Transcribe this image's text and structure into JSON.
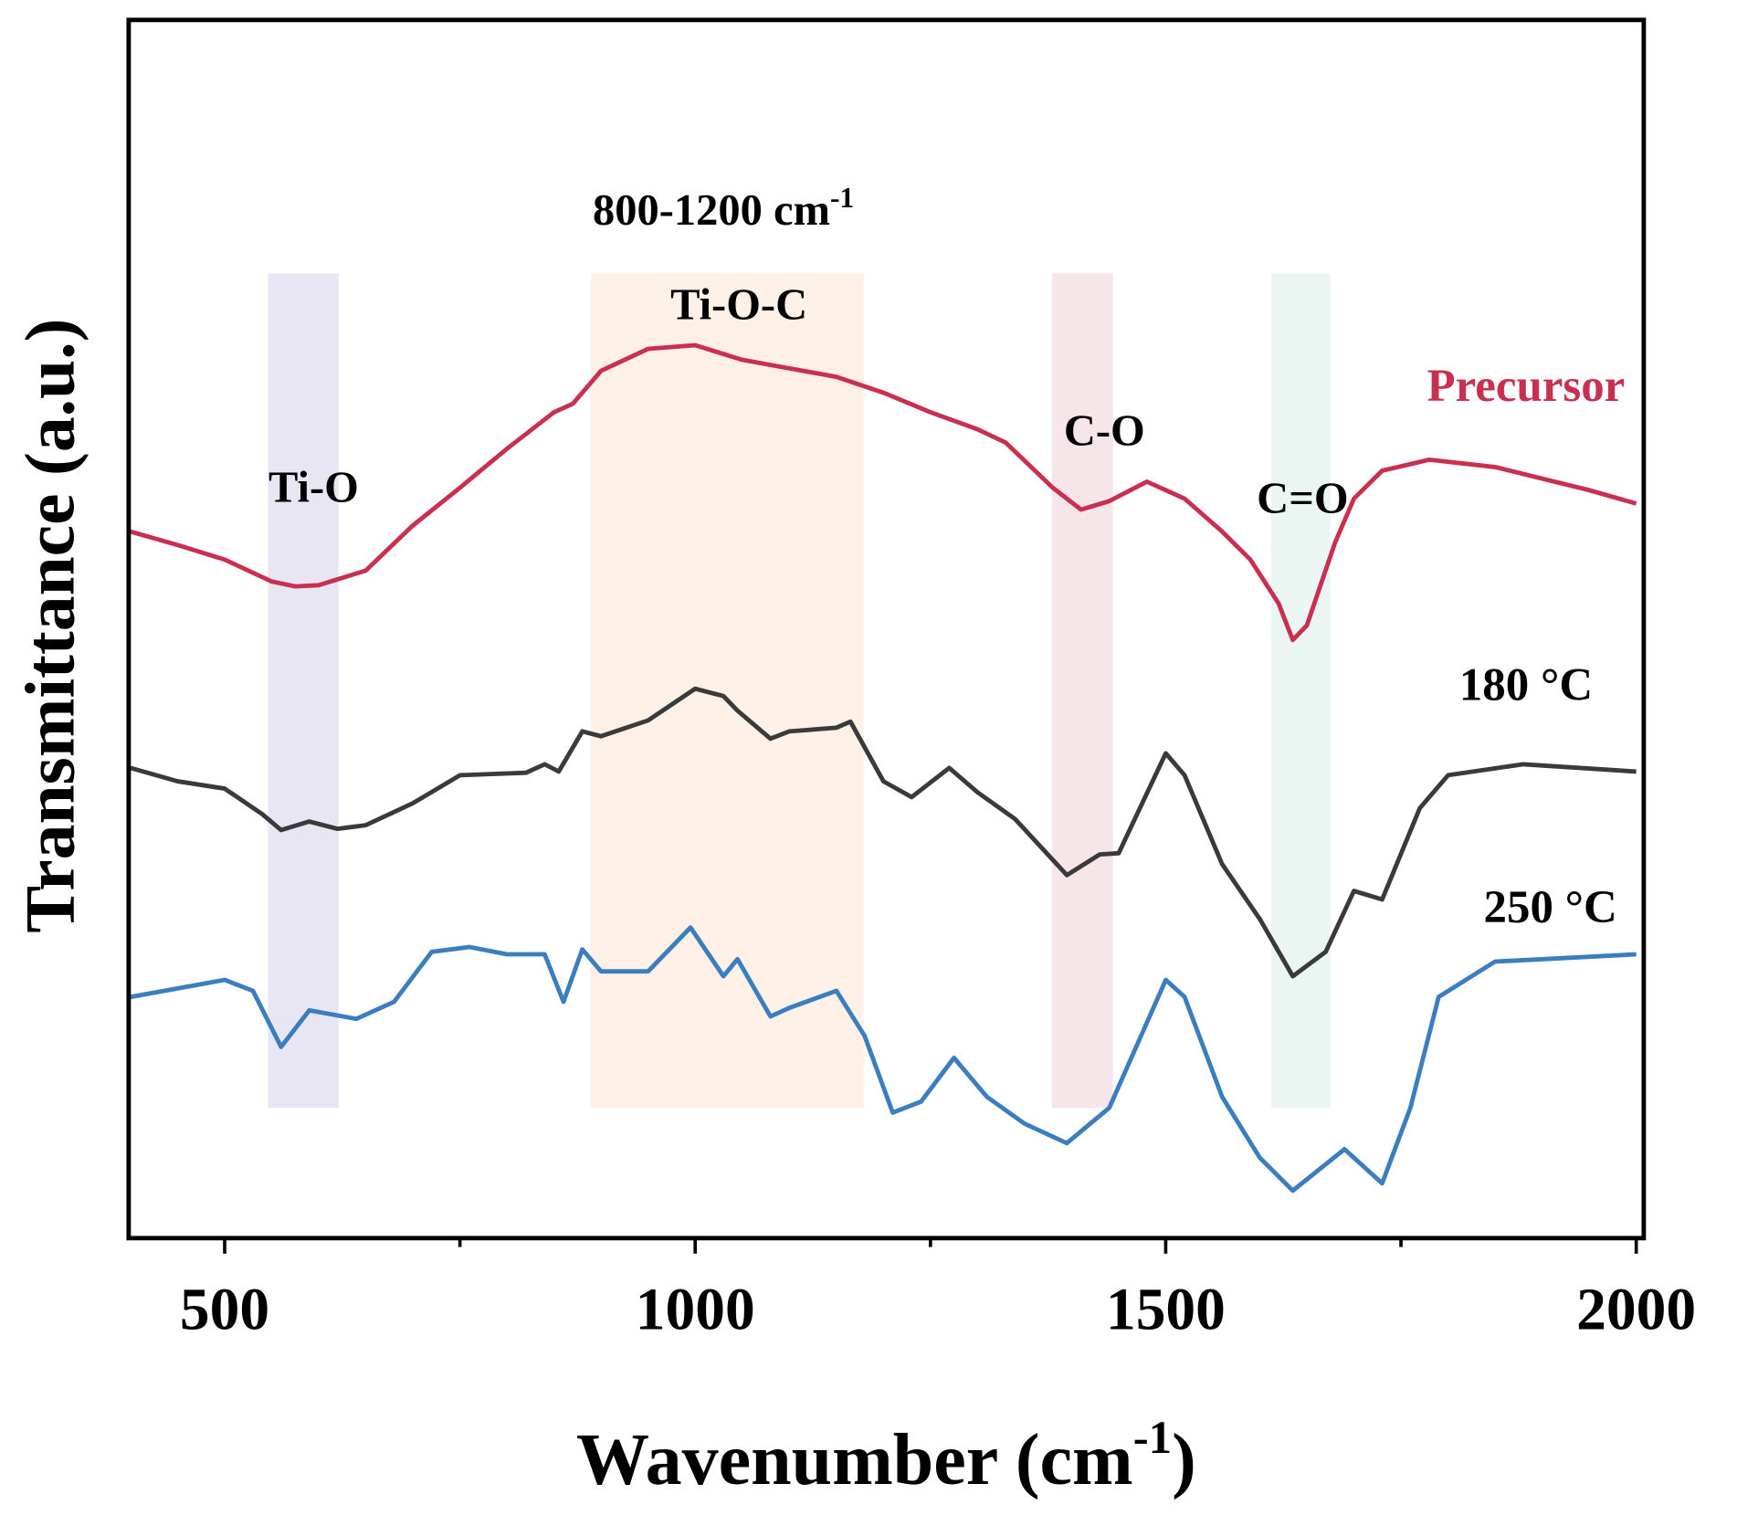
{
  "chart_data": {
    "type": "line",
    "title": "",
    "xlabel": "Wavenumber (cm",
    "xlabel_sup": "-1",
    "xlabel_end": ")",
    "ylabel": "Transmittance (a.u.)",
    "xlim": [
      398,
      2008
    ],
    "ylim": [
      0,
      100
    ],
    "xticks": [
      500,
      1000,
      1500,
      2000
    ],
    "xtick_labels": [
      "500",
      "1000",
      "1500",
      "2000"
    ],
    "minor_xticks": [
      750,
      1250,
      1750
    ],
    "grid": false,
    "bands": [
      {
        "label": "Ti-O",
        "x": [
          546,
          621
        ],
        "color": "#e9e6f3"
      },
      {
        "label": "Ti-O-C",
        "x": [
          889,
          1179
        ],
        "color": "#fdf0e6"
      },
      {
        "label": "C-O",
        "x": [
          1379,
          1444
        ],
        "color": "#f6e6ea"
      },
      {
        "label": "C=O",
        "x": [
          1612,
          1675
        ],
        "color": "#ebf5f2"
      }
    ],
    "band_y": [
      10.7,
      79.2
    ],
    "range_annotation": {
      "text": "800-1200 cm",
      "sup": "-1"
    },
    "series": [
      {
        "name": "Precursor",
        "color": "#c9304f",
        "x": [
          400,
          450,
          500,
          550,
          575,
          600,
          650,
          700,
          750,
          800,
          850,
          870,
          900,
          950,
          1000,
          1050,
          1100,
          1150,
          1200,
          1250,
          1300,
          1330,
          1380,
          1410,
          1440,
          1480,
          1520,
          1560,
          1590,
          1620,
          1635,
          1650,
          1680,
          1700,
          1730,
          1780,
          1850,
          1950,
          2000
        ],
        "y": [
          58.0,
          56.9,
          55.7,
          53.9,
          53.5,
          53.6,
          54.8,
          58.5,
          61.6,
          64.8,
          67.8,
          68.5,
          71.2,
          73.0,
          73.3,
          72.1,
          71.4,
          70.7,
          69.4,
          67.8,
          66.4,
          65.3,
          61.6,
          59.8,
          60.5,
          62.1,
          60.7,
          58.0,
          55.7,
          52.1,
          49.1,
          50.3,
          57.1,
          60.7,
          63.0,
          63.9,
          63.3,
          61.4,
          60.3
        ]
      },
      {
        "name": "180 °C",
        "color": "#3a3a3a",
        "x": [
          400,
          450,
          500,
          540,
          560,
          590,
          620,
          650,
          700,
          750,
          820,
          840,
          855,
          880,
          900,
          950,
          1000,
          1030,
          1045,
          1080,
          1100,
          1150,
          1165,
          1200,
          1230,
          1270,
          1300,
          1340,
          1395,
          1430,
          1450,
          1500,
          1520,
          1560,
          1600,
          1635,
          1670,
          1700,
          1730,
          1770,
          1800,
          1880,
          2000
        ],
        "y": [
          38.6,
          37.5,
          36.9,
          34.8,
          33.5,
          34.2,
          33.6,
          33.9,
          35.7,
          38.0,
          38.2,
          38.9,
          38.3,
          41.6,
          41.2,
          42.5,
          45.1,
          44.5,
          43.3,
          41.0,
          41.6,
          41.9,
          42.4,
          37.5,
          36.2,
          38.6,
          36.6,
          34.4,
          29.8,
          31.5,
          31.6,
          39.8,
          38.0,
          30.7,
          26.2,
          21.5,
          23.5,
          28.5,
          27.8,
          35.3,
          38.0,
          38.9,
          38.3
        ]
      },
      {
        "name": "250 °C",
        "color": "#3a7ebf",
        "x": [
          400,
          450,
          500,
          530,
          560,
          590,
          640,
          680,
          720,
          760,
          800,
          840,
          860,
          880,
          900,
          950,
          995,
          1030,
          1045,
          1080,
          1100,
          1150,
          1180,
          1210,
          1240,
          1275,
          1310,
          1350,
          1395,
          1440,
          1500,
          1520,
          1560,
          1600,
          1635,
          1690,
          1730,
          1760,
          1790,
          1850,
          2000
        ],
        "y": [
          19.8,
          20.5,
          21.2,
          20.3,
          15.7,
          18.7,
          18.0,
          19.4,
          23.5,
          23.9,
          23.3,
          23.3,
          19.4,
          23.7,
          21.9,
          21.9,
          25.5,
          21.5,
          22.9,
          18.2,
          18.9,
          20.3,
          16.6,
          10.3,
          11.2,
          14.8,
          11.6,
          9.4,
          7.8,
          10.7,
          21.2,
          19.8,
          11.6,
          6.6,
          3.9,
          7.3,
          4.5,
          10.7,
          19.8,
          22.7,
          23.3
        ]
      }
    ]
  }
}
